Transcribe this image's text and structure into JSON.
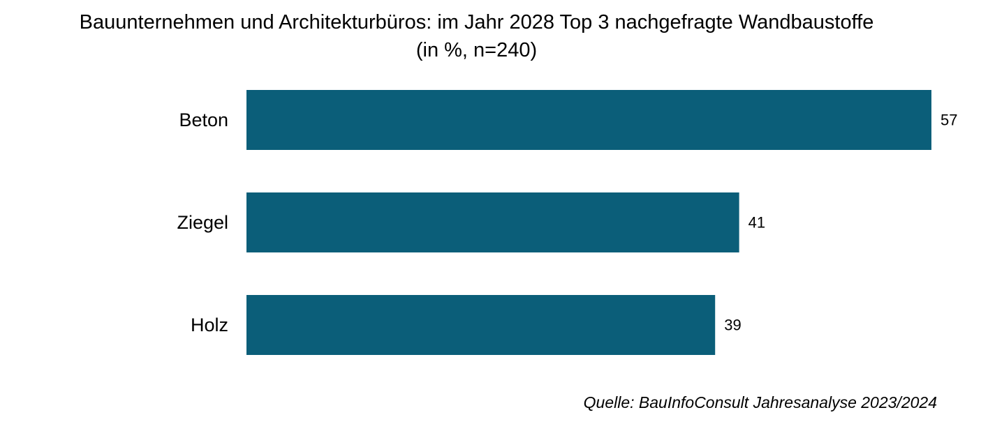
{
  "title_line1": "Bauunternehmen und Architekturbüros: im Jahr 2028 Top 3 nachgefragte Wandbaustoffe",
  "title_line2": "(in %, n=240)",
  "source": "Quelle: BauInfoConsult Jahresanalyse 2023/2024",
  "colors": {
    "bar": "#0b5e79",
    "text": "#000000"
  },
  "chart_data": {
    "type": "bar",
    "orientation": "horizontal",
    "categories": [
      "Beton",
      "Ziegel",
      "Holz"
    ],
    "values": [
      57,
      41,
      39
    ],
    "data_labels": [
      "57",
      "41",
      "39"
    ],
    "title": "Bauunternehmen und Architekturbüros: im Jahr 2028 Top 3 nachgefragte Wandbaustoffe (in %, n=240)",
    "unit": "%",
    "xlim": [
      0,
      57
    ],
    "grid": false,
    "legend": "none"
  }
}
